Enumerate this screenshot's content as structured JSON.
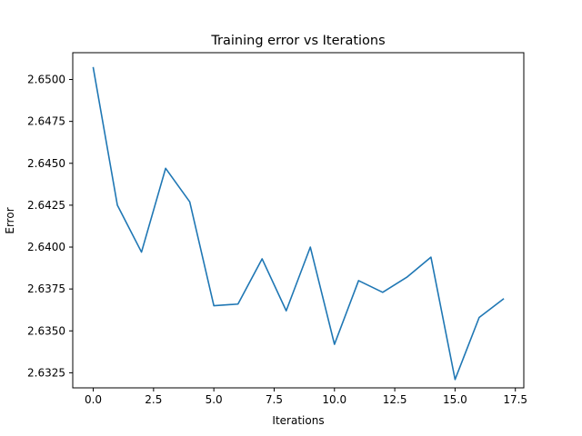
{
  "chart_data": {
    "type": "line",
    "title": "Training error vs Iterations",
    "xlabel": "Iterations",
    "ylabel": "Error",
    "xlim": [
      -0.85,
      17.85
    ],
    "ylim": [
      2.6316,
      2.6516
    ],
    "xticks": [
      0.0,
      2.5,
      5.0,
      7.5,
      10.0,
      12.5,
      15.0,
      17.5
    ],
    "xtick_labels": [
      "0.0",
      "2.5",
      "5.0",
      "7.5",
      "10.0",
      "12.5",
      "15.0",
      "17.5"
    ],
    "yticks": [
      2.6325,
      2.635,
      2.6375,
      2.64,
      2.6425,
      2.645,
      2.6475,
      2.65
    ],
    "ytick_labels": [
      "2.6325",
      "2.6350",
      "2.6375",
      "2.6400",
      "2.6425",
      "2.6450",
      "2.6475",
      "2.6500"
    ],
    "grid": false,
    "series": [
      {
        "color": "#1f77b4",
        "x": [
          0,
          1,
          2,
          3,
          4,
          5,
          6,
          7,
          8,
          9,
          10,
          11,
          12,
          13,
          14,
          15,
          16,
          17
        ],
        "y": [
          2.6507,
          2.6425,
          2.6397,
          2.6447,
          2.6427,
          2.6365,
          2.6366,
          2.6393,
          2.6362,
          2.64,
          2.6342,
          2.638,
          2.6373,
          2.6382,
          2.6394,
          2.6321,
          2.6358,
          2.6369
        ]
      }
    ]
  }
}
